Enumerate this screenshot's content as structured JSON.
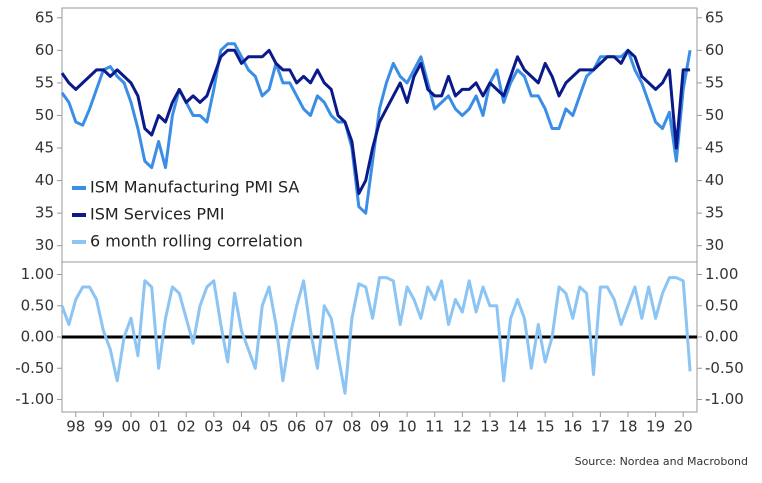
{
  "source": "Source: Nordea and Macrobond",
  "chart_data": [
    {
      "type": "line",
      "x": [
        1998,
        1998.25,
        1998.5,
        1998.75,
        1999,
        1999.25,
        1999.5,
        1999.75,
        2000,
        2000.25,
        2000.5,
        2000.75,
        2001,
        2001.25,
        2001.5,
        2001.75,
        2002,
        2002.25,
        2002.5,
        2002.75,
        2003,
        2003.25,
        2003.5,
        2003.75,
        2004,
        2004.25,
        2004.5,
        2004.75,
        2005,
        2005.25,
        2005.5,
        2005.75,
        2006,
        2006.25,
        2006.5,
        2006.75,
        2007,
        2007.25,
        2007.5,
        2007.75,
        2008,
        2008.25,
        2008.5,
        2008.75,
        2009,
        2009.25,
        2009.5,
        2009.75,
        2010,
        2010.25,
        2010.5,
        2010.75,
        2011,
        2011.25,
        2011.5,
        2011.75,
        2012,
        2012.25,
        2012.5,
        2012.75,
        2013,
        2013.25,
        2013.5,
        2013.75,
        2014,
        2014.25,
        2014.5,
        2014.75,
        2015,
        2015.25,
        2015.5,
        2015.75,
        2016,
        2016.25,
        2016.5,
        2016.75,
        2017,
        2017.25,
        2017.5,
        2017.75,
        2018,
        2018.25,
        2018.5,
        2018.75,
        2019,
        2019.25,
        2019.5,
        2019.75,
        2020,
        2020.25,
        2020.5,
        2020.75
      ],
      "xlim": [
        1998,
        2021
      ],
      "ylim": [
        27.5,
        66.5
      ],
      "yticks": [
        30,
        35,
        40,
        45,
        50,
        55,
        60,
        65
      ],
      "legend": "lower left",
      "series": [
        {
          "name": "ISM Manufacturing PMI SA",
          "color": "#3b8ee6",
          "values": [
            53.5,
            52,
            49,
            48.5,
            51,
            54,
            57,
            57.5,
            56,
            55,
            52,
            48,
            43,
            42,
            46,
            42,
            50,
            54,
            52,
            50,
            50,
            49,
            54,
            60,
            61,
            61,
            59,
            57,
            56,
            53,
            54,
            58,
            55,
            55,
            53,
            51,
            50,
            53,
            52,
            50,
            49,
            49,
            45,
            36,
            35,
            43,
            51,
            55,
            58,
            56,
            55,
            57,
            59,
            55,
            51,
            52,
            53,
            51,
            50,
            51,
            53,
            50,
            55,
            57,
            52,
            55,
            57,
            56,
            53,
            53,
            51,
            48,
            48,
            51,
            50,
            53,
            56,
            57,
            59,
            59,
            59,
            59,
            60,
            57,
            55,
            52,
            49,
            48,
            50.5,
            43,
            54,
            60
          ]
        },
        {
          "name": "ISM Services PMI",
          "color": "#0b1a8a",
          "values": [
            56.5,
            55,
            54,
            55,
            56,
            57,
            57,
            56,
            57,
            56,
            55,
            53,
            48,
            47,
            50,
            49,
            52,
            54,
            52,
            53,
            52,
            53,
            56,
            59,
            60,
            60,
            58,
            59,
            59,
            59,
            60,
            58,
            57,
            57,
            55,
            56,
            55,
            57,
            55,
            54,
            50,
            49,
            46,
            38,
            40,
            45,
            49,
            51,
            53,
            55,
            52,
            56,
            58,
            54,
            53,
            53,
            56,
            53,
            54,
            54,
            55,
            53,
            55,
            54,
            53,
            56,
            59,
            57,
            56,
            55,
            58,
            56,
            53,
            55,
            56,
            57,
            57,
            57,
            58,
            59,
            59,
            58,
            60,
            59,
            56,
            55,
            54,
            55,
            57,
            45,
            57,
            57
          ]
        }
      ]
    },
    {
      "type": "line",
      "x": [
        1998,
        1998.25,
        1998.5,
        1998.75,
        1999,
        1999.25,
        1999.5,
        1999.75,
        2000,
        2000.25,
        2000.5,
        2000.75,
        2001,
        2001.25,
        2001.5,
        2001.75,
        2002,
        2002.25,
        2002.5,
        2002.75,
        2003,
        2003.25,
        2003.5,
        2003.75,
        2004,
        2004.25,
        2004.5,
        2004.75,
        2005,
        2005.25,
        2005.5,
        2005.75,
        2006,
        2006.25,
        2006.5,
        2006.75,
        2007,
        2007.25,
        2007.5,
        2007.75,
        2008,
        2008.25,
        2008.5,
        2008.75,
        2009,
        2009.25,
        2009.5,
        2009.75,
        2010,
        2010.25,
        2010.5,
        2010.75,
        2011,
        2011.25,
        2011.5,
        2011.75,
        2012,
        2012.25,
        2012.5,
        2012.75,
        2013,
        2013.25,
        2013.5,
        2013.75,
        2014,
        2014.25,
        2014.5,
        2014.75,
        2015,
        2015.25,
        2015.5,
        2015.75,
        2016,
        2016.25,
        2016.5,
        2016.75,
        2017,
        2017.25,
        2017.5,
        2017.75,
        2018,
        2018.25,
        2018.5,
        2018.75,
        2019,
        2019.25,
        2019.5,
        2019.75,
        2020,
        2020.25,
        2020.5,
        2020.75
      ],
      "xlim": [
        1998,
        2021
      ],
      "xticks": [
        {
          "value": 1998.5,
          "label": "98"
        },
        {
          "value": 1999.5,
          "label": "99"
        },
        {
          "value": 2000.5,
          "label": "00"
        },
        {
          "value": 2001.5,
          "label": "01"
        },
        {
          "value": 2002.5,
          "label": "02"
        },
        {
          "value": 2003.5,
          "label": "03"
        },
        {
          "value": 2004.5,
          "label": "04"
        },
        {
          "value": 2005.5,
          "label": "05"
        },
        {
          "value": 2006.5,
          "label": "06"
        },
        {
          "value": 2007.5,
          "label": "07"
        },
        {
          "value": 2008.5,
          "label": "08"
        },
        {
          "value": 2009.5,
          "label": "09"
        },
        {
          "value": 2010.5,
          "label": "10"
        },
        {
          "value": 2011.5,
          "label": "11"
        },
        {
          "value": 2012.5,
          "label": "12"
        },
        {
          "value": 2013.5,
          "label": "13"
        },
        {
          "value": 2014.5,
          "label": "14"
        },
        {
          "value": 2015.5,
          "label": "15"
        },
        {
          "value": 2016.5,
          "label": "16"
        },
        {
          "value": 2017.5,
          "label": "17"
        },
        {
          "value": 2018.5,
          "label": "18"
        },
        {
          "value": 2019.5,
          "label": "19"
        },
        {
          "value": 2020.5,
          "label": "20"
        }
      ],
      "ylim": [
        -1.2,
        1.2
      ],
      "yticks": [
        {
          "value": 1,
          "label": "1.00"
        },
        {
          "value": 0.5,
          "label": "0.50"
        },
        {
          "value": 0,
          "label": "0.00"
        },
        {
          "value": -0.5,
          "label": "-0.50"
        },
        {
          "value": -1,
          "label": "-1.00"
        }
      ],
      "series": [
        {
          "name": "6 month rolling correlation",
          "color": "#8cc4f4",
          "values": [
            0.5,
            0.2,
            0.6,
            0.8,
            0.8,
            0.6,
            0.1,
            -0.2,
            -0.7,
            0,
            0.3,
            -0.3,
            0.9,
            0.8,
            -0.5,
            0.3,
            0.8,
            0.7,
            0.3,
            -0.1,
            0.5,
            0.8,
            0.9,
            0.2,
            -0.4,
            0.7,
            0.1,
            -0.2,
            -0.5,
            0.5,
            0.8,
            0.2,
            -0.7,
            0,
            0.5,
            0.9,
            0.1,
            -0.5,
            0.5,
            0.3,
            -0.3,
            -0.9,
            0.3,
            0.85,
            0.8,
            0.3,
            0.95,
            0.95,
            0.9,
            0.2,
            0.8,
            0.6,
            0.3,
            0.8,
            0.6,
            0.9,
            0.2,
            0.6,
            0.4,
            0.9,
            0.4,
            0.8,
            0.5,
            0.5,
            -0.7,
            0.3,
            0.6,
            0.3,
            -0.5,
            0.2,
            -0.4,
            0,
            0.8,
            0.7,
            0.3,
            0.8,
            0.7,
            -0.6,
            0.8,
            0.8,
            0.6,
            0.2,
            0.5,
            0.8,
            0.3,
            0.8,
            0.3,
            0.7,
            0.95,
            0.95,
            0.9,
            -0.55
          ]
        }
      ]
    }
  ]
}
